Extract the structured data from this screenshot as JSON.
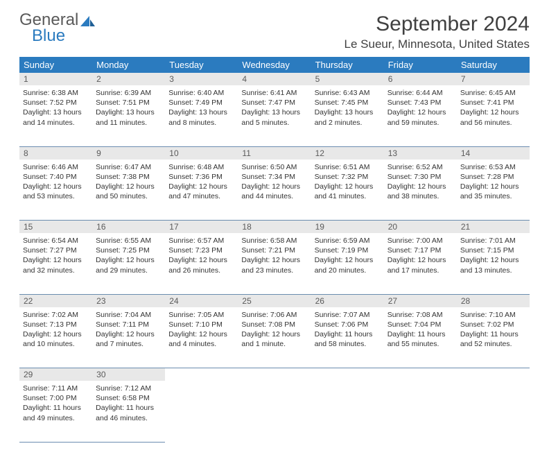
{
  "logo": {
    "word1": "General",
    "word2": "Blue"
  },
  "title": "September 2024",
  "location": "Le Sueur, Minnesota, United States",
  "colors": {
    "header_bg": "#2b7bbf",
    "header_fg": "#ffffff",
    "daynum_bg": "#e8e8e8",
    "daynum_fg": "#5a5a5a",
    "rule": "#6a8caf",
    "text": "#333333",
    "logo_gray": "#5a5a5a",
    "logo_blue": "#2b7bbf"
  },
  "day_headers": [
    "Sunday",
    "Monday",
    "Tuesday",
    "Wednesday",
    "Thursday",
    "Friday",
    "Saturday"
  ],
  "weeks": [
    [
      {
        "n": "1",
        "sr": "6:38 AM",
        "ss": "7:52 PM",
        "dl": "13 hours and 14 minutes."
      },
      {
        "n": "2",
        "sr": "6:39 AM",
        "ss": "7:51 PM",
        "dl": "13 hours and 11 minutes."
      },
      {
        "n": "3",
        "sr": "6:40 AM",
        "ss": "7:49 PM",
        "dl": "13 hours and 8 minutes."
      },
      {
        "n": "4",
        "sr": "6:41 AM",
        "ss": "7:47 PM",
        "dl": "13 hours and 5 minutes."
      },
      {
        "n": "5",
        "sr": "6:43 AM",
        "ss": "7:45 PM",
        "dl": "13 hours and 2 minutes."
      },
      {
        "n": "6",
        "sr": "6:44 AM",
        "ss": "7:43 PM",
        "dl": "12 hours and 59 minutes."
      },
      {
        "n": "7",
        "sr": "6:45 AM",
        "ss": "7:41 PM",
        "dl": "12 hours and 56 minutes."
      }
    ],
    [
      {
        "n": "8",
        "sr": "6:46 AM",
        "ss": "7:40 PM",
        "dl": "12 hours and 53 minutes."
      },
      {
        "n": "9",
        "sr": "6:47 AM",
        "ss": "7:38 PM",
        "dl": "12 hours and 50 minutes."
      },
      {
        "n": "10",
        "sr": "6:48 AM",
        "ss": "7:36 PM",
        "dl": "12 hours and 47 minutes."
      },
      {
        "n": "11",
        "sr": "6:50 AM",
        "ss": "7:34 PM",
        "dl": "12 hours and 44 minutes."
      },
      {
        "n": "12",
        "sr": "6:51 AM",
        "ss": "7:32 PM",
        "dl": "12 hours and 41 minutes."
      },
      {
        "n": "13",
        "sr": "6:52 AM",
        "ss": "7:30 PM",
        "dl": "12 hours and 38 minutes."
      },
      {
        "n": "14",
        "sr": "6:53 AM",
        "ss": "7:28 PM",
        "dl": "12 hours and 35 minutes."
      }
    ],
    [
      {
        "n": "15",
        "sr": "6:54 AM",
        "ss": "7:27 PM",
        "dl": "12 hours and 32 minutes."
      },
      {
        "n": "16",
        "sr": "6:55 AM",
        "ss": "7:25 PM",
        "dl": "12 hours and 29 minutes."
      },
      {
        "n": "17",
        "sr": "6:57 AM",
        "ss": "7:23 PM",
        "dl": "12 hours and 26 minutes."
      },
      {
        "n": "18",
        "sr": "6:58 AM",
        "ss": "7:21 PM",
        "dl": "12 hours and 23 minutes."
      },
      {
        "n": "19",
        "sr": "6:59 AM",
        "ss": "7:19 PM",
        "dl": "12 hours and 20 minutes."
      },
      {
        "n": "20",
        "sr": "7:00 AM",
        "ss": "7:17 PM",
        "dl": "12 hours and 17 minutes."
      },
      {
        "n": "21",
        "sr": "7:01 AM",
        "ss": "7:15 PM",
        "dl": "12 hours and 13 minutes."
      }
    ],
    [
      {
        "n": "22",
        "sr": "7:02 AM",
        "ss": "7:13 PM",
        "dl": "12 hours and 10 minutes."
      },
      {
        "n": "23",
        "sr": "7:04 AM",
        "ss": "7:11 PM",
        "dl": "12 hours and 7 minutes."
      },
      {
        "n": "24",
        "sr": "7:05 AM",
        "ss": "7:10 PM",
        "dl": "12 hours and 4 minutes."
      },
      {
        "n": "25",
        "sr": "7:06 AM",
        "ss": "7:08 PM",
        "dl": "12 hours and 1 minute."
      },
      {
        "n": "26",
        "sr": "7:07 AM",
        "ss": "7:06 PM",
        "dl": "11 hours and 58 minutes."
      },
      {
        "n": "27",
        "sr": "7:08 AM",
        "ss": "7:04 PM",
        "dl": "11 hours and 55 minutes."
      },
      {
        "n": "28",
        "sr": "7:10 AM",
        "ss": "7:02 PM",
        "dl": "11 hours and 52 minutes."
      }
    ],
    [
      {
        "n": "29",
        "sr": "7:11 AM",
        "ss": "7:00 PM",
        "dl": "11 hours and 49 minutes."
      },
      {
        "n": "30",
        "sr": "7:12 AM",
        "ss": "6:58 PM",
        "dl": "11 hours and 46 minutes."
      },
      null,
      null,
      null,
      null,
      null
    ]
  ],
  "labels": {
    "sunrise": "Sunrise:",
    "sunset": "Sunset:",
    "daylight": "Daylight:"
  }
}
